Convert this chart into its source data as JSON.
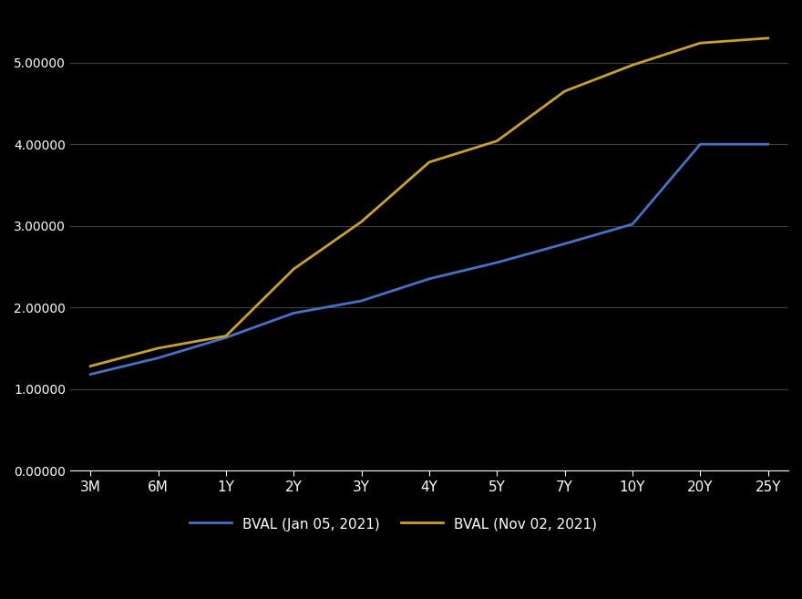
{
  "x_labels": [
    "3M",
    "6M",
    "1Y",
    "2Y",
    "3Y",
    "4Y",
    "5Y",
    "7Y",
    "10Y",
    "20Y",
    "25Y"
  ],
  "x_positions": [
    0,
    1,
    2,
    3,
    4,
    5,
    6,
    7,
    8,
    9,
    10
  ],
  "bval_jan": [
    1.18,
    1.38,
    1.63,
    1.93,
    2.08,
    2.35,
    2.55,
    2.78,
    3.02,
    4.0,
    4.0
  ],
  "bval_nov": [
    1.28,
    1.5,
    1.65,
    2.47,
    3.05,
    3.78,
    4.04,
    4.65,
    4.97,
    5.24,
    5.3
  ],
  "line_color_jan": "#4472C4",
  "line_color_nov": "#C9A227",
  "background_color": "#000000",
  "text_color": "#FFFFFF",
  "grid_color": "#404040",
  "legend_jan": "BVAL (Jan 05, 2021)",
  "legend_nov": "BVAL (Nov 02, 2021)",
  "ylim_min": 0.0,
  "ylim_max": 5.6,
  "yticks": [
    0.0,
    1.0,
    2.0,
    3.0,
    4.0,
    5.0
  ],
  "line_width": 2.0
}
